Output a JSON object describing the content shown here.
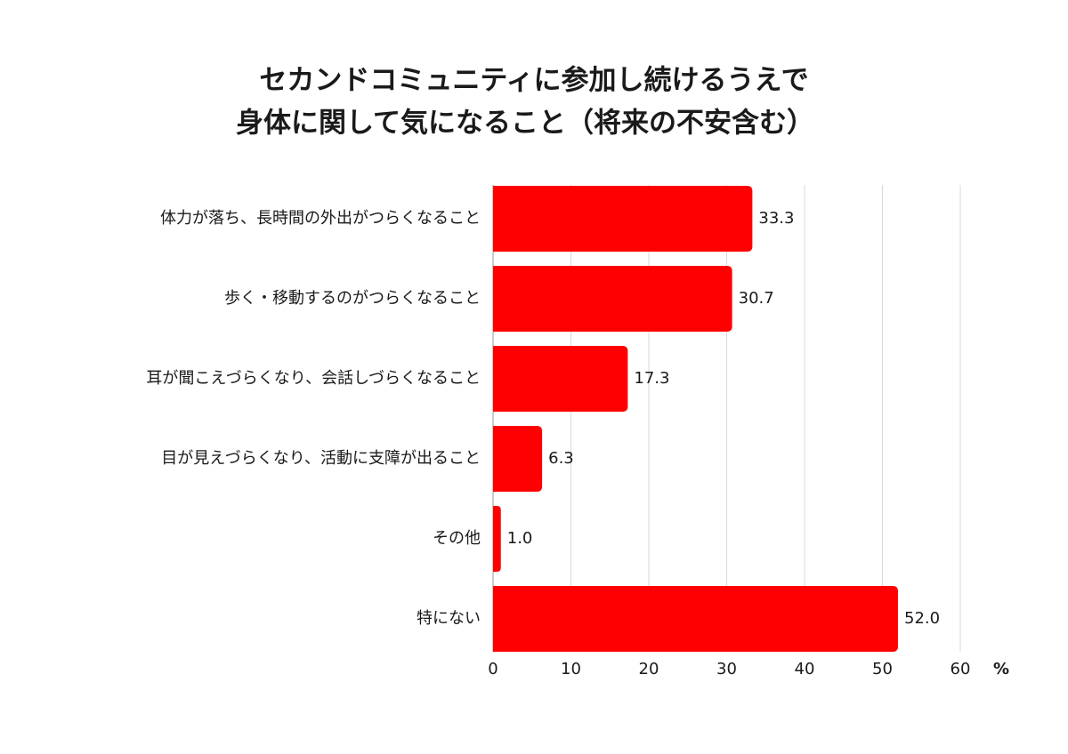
{
  "chart_data": {
    "type": "hbar",
    "title": [
      "セカンドコミュニティに参加し続けるうえで",
      "身体に関して気になること（将来の不安含む）"
    ],
    "categories": [
      "体力が落ち、長時間の外出がつらくなること",
      "歩く・移動するのがつらくなること",
      "耳が聞こえづらくなり、会話しづらくなること",
      "目が見えづらくなり、活動に支障が出ること",
      "その他",
      "特にない"
    ],
    "values": [
      33.3,
      30.7,
      17.3,
      6.3,
      1.0,
      52.0
    ],
    "value_labels": [
      "33.3",
      "30.7",
      "17.3",
      "6.3",
      "1.0",
      "52.0"
    ],
    "color": "#ff0000",
    "xlim": [
      0,
      60
    ],
    "xticks": [
      0,
      10,
      20,
      30,
      40,
      50,
      60
    ],
    "x_unit": "%",
    "grid": true
  }
}
